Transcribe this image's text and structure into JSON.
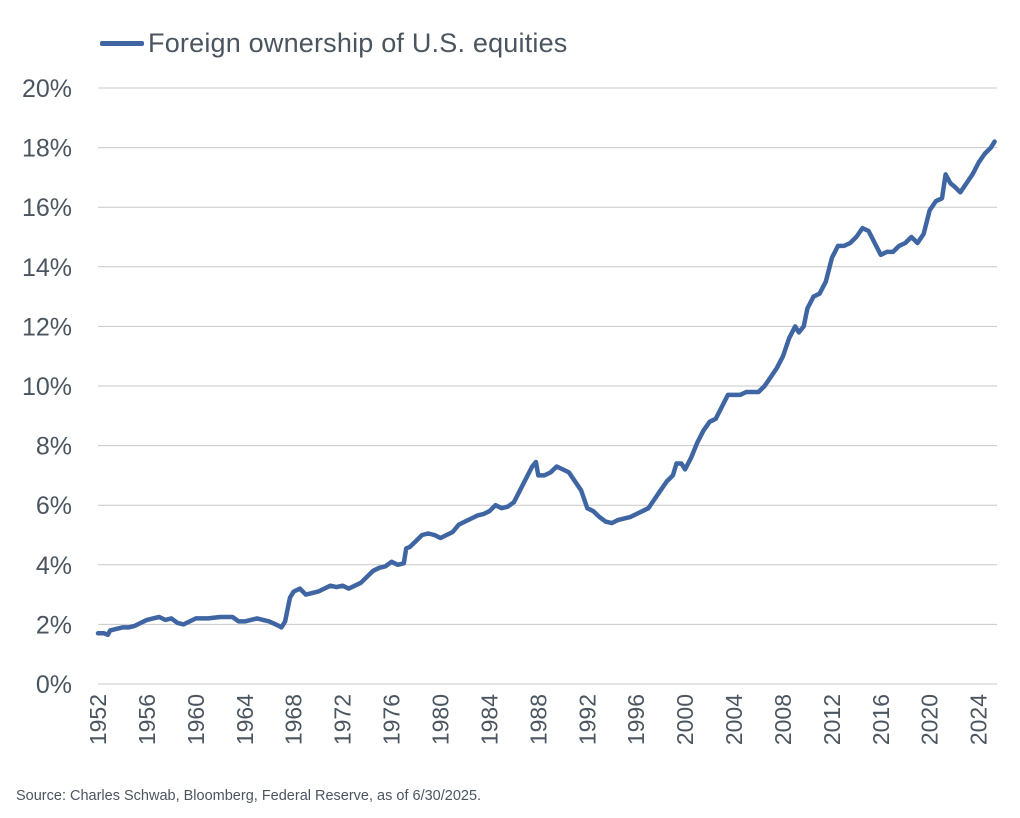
{
  "colors": {
    "series": "#3f66a2",
    "grid": "#c8c8c8",
    "text": "#4b5560"
  },
  "source": "Source: Charles Schwab, Bloomberg, Federal Reserve, as of 6/30/2025.",
  "chart_data": {
    "type": "line",
    "title": "",
    "xlabel": "",
    "ylabel": "",
    "ylim": [
      0,
      20
    ],
    "xlim": [
      1952,
      2025.5
    ],
    "yticks": [
      "0%",
      "2%",
      "4%",
      "6%",
      "8%",
      "10%",
      "12%",
      "14%",
      "16%",
      "18%",
      "20%"
    ],
    "ytick_values": [
      0,
      2,
      4,
      6,
      8,
      10,
      12,
      14,
      16,
      18,
      20
    ],
    "xticks": [
      "1952",
      "1956",
      "1960",
      "1964",
      "1968",
      "1972",
      "1976",
      "1980",
      "1984",
      "1988",
      "1992",
      "1996",
      "2000",
      "2004",
      "2008",
      "2012",
      "2016",
      "2020",
      "2024"
    ],
    "xtick_values": [
      1952,
      1956,
      1960,
      1964,
      1968,
      1972,
      1976,
      1980,
      1984,
      1988,
      1992,
      1996,
      2000,
      2004,
      2008,
      2012,
      2016,
      2020,
      2024
    ],
    "grid": true,
    "legend": "top-left",
    "series": [
      {
        "name": "Foreign ownership of U.S. equities",
        "x": [
          1952,
          1952.5,
          1952.8,
          1953,
          1953.5,
          1954,
          1954.5,
          1955,
          1955.5,
          1956,
          1956.5,
          1957,
          1957.5,
          1958,
          1958.5,
          1959,
          1960,
          1961,
          1962,
          1963,
          1963.5,
          1964,
          1965,
          1966,
          1966.8,
          1967,
          1967.3,
          1967.7,
          1968,
          1968.5,
          1969,
          1969.5,
          1970,
          1970.5,
          1971,
          1971.5,
          1972,
          1972.5,
          1973,
          1973.5,
          1974,
          1974.5,
          1975,
          1975.5,
          1976,
          1976.5,
          1977,
          1977.2,
          1977.5,
          1978,
          1978.5,
          1979,
          1979.5,
          1980,
          1980.5,
          1981,
          1981.5,
          1982,
          1982.5,
          1983,
          1983.5,
          1984,
          1984.5,
          1985,
          1985.5,
          1986,
          1986.5,
          1987,
          1987.5,
          1987.8,
          1988,
          1988.5,
          1989,
          1989.5,
          1990,
          1990.5,
          1991,
          1991.5,
          1992,
          1992.5,
          1993,
          1993.5,
          1994,
          1994.5,
          1995,
          1995.5,
          1996,
          1996.5,
          1997,
          1997.5,
          1998,
          1998.5,
          1999,
          1999.3,
          1999.7,
          2000,
          2000.5,
          2001,
          2001.5,
          2002,
          2002.5,
          2003,
          2003.5,
          2004,
          2004.5,
          2005,
          2005.5,
          2006,
          2006.5,
          2007,
          2007.5,
          2008,
          2008.5,
          2009,
          2009.3,
          2009.7,
          2010,
          2010.5,
          2011,
          2011.5,
          2012,
          2012.5,
          2013,
          2013.5,
          2014,
          2014.5,
          2015,
          2015.5,
          2016,
          2016.5,
          2017,
          2017.5,
          2018,
          2018.5,
          2019,
          2019.5,
          2020,
          2020.5,
          2021,
          2021.3,
          2021.7,
          2022,
          2022.5,
          2023,
          2023.5,
          2024,
          2024.5,
          2025,
          2025.3
        ],
        "values": [
          1.7,
          1.7,
          1.65,
          1.8,
          1.85,
          1.9,
          1.9,
          1.95,
          2.05,
          2.15,
          2.2,
          2.25,
          2.15,
          2.2,
          2.05,
          2.0,
          2.2,
          2.2,
          2.25,
          2.25,
          2.1,
          2.1,
          2.2,
          2.1,
          1.95,
          1.9,
          2.1,
          2.9,
          3.1,
          3.2,
          3.0,
          3.05,
          3.1,
          3.2,
          3.3,
          3.25,
          3.3,
          3.2,
          3.3,
          3.4,
          3.6,
          3.8,
          3.9,
          3.95,
          4.1,
          4.0,
          4.05,
          4.55,
          4.6,
          4.8,
          5.0,
          5.05,
          5.0,
          4.9,
          5.0,
          5.1,
          5.35,
          5.45,
          5.55,
          5.65,
          5.7,
          5.8,
          6.0,
          5.9,
          5.95,
          6.1,
          6.5,
          6.9,
          7.3,
          7.45,
          7.0,
          7.0,
          7.1,
          7.3,
          7.2,
          7.1,
          6.8,
          6.5,
          5.9,
          5.8,
          5.6,
          5.45,
          5.4,
          5.5,
          5.55,
          5.6,
          5.7,
          5.8,
          5.9,
          6.2,
          6.5,
          6.8,
          7.0,
          7.4,
          7.4,
          7.2,
          7.6,
          8.1,
          8.5,
          8.8,
          8.9,
          9.3,
          9.7,
          9.7,
          9.7,
          9.8,
          9.8,
          9.8,
          10.0,
          10.3,
          10.6,
          11.0,
          11.6,
          12.0,
          11.8,
          12.0,
          12.6,
          13.0,
          13.1,
          13.5,
          14.3,
          14.7,
          14.7,
          14.8,
          15.0,
          15.3,
          15.2,
          14.8,
          14.4,
          14.5,
          14.5,
          14.7,
          14.8,
          15.0,
          14.8,
          15.1,
          15.9,
          16.2,
          16.3,
          17.1,
          16.8,
          16.7,
          16.5,
          16.8,
          17.1,
          17.5,
          17.8,
          18.0,
          18.2
        ]
      }
    ]
  }
}
